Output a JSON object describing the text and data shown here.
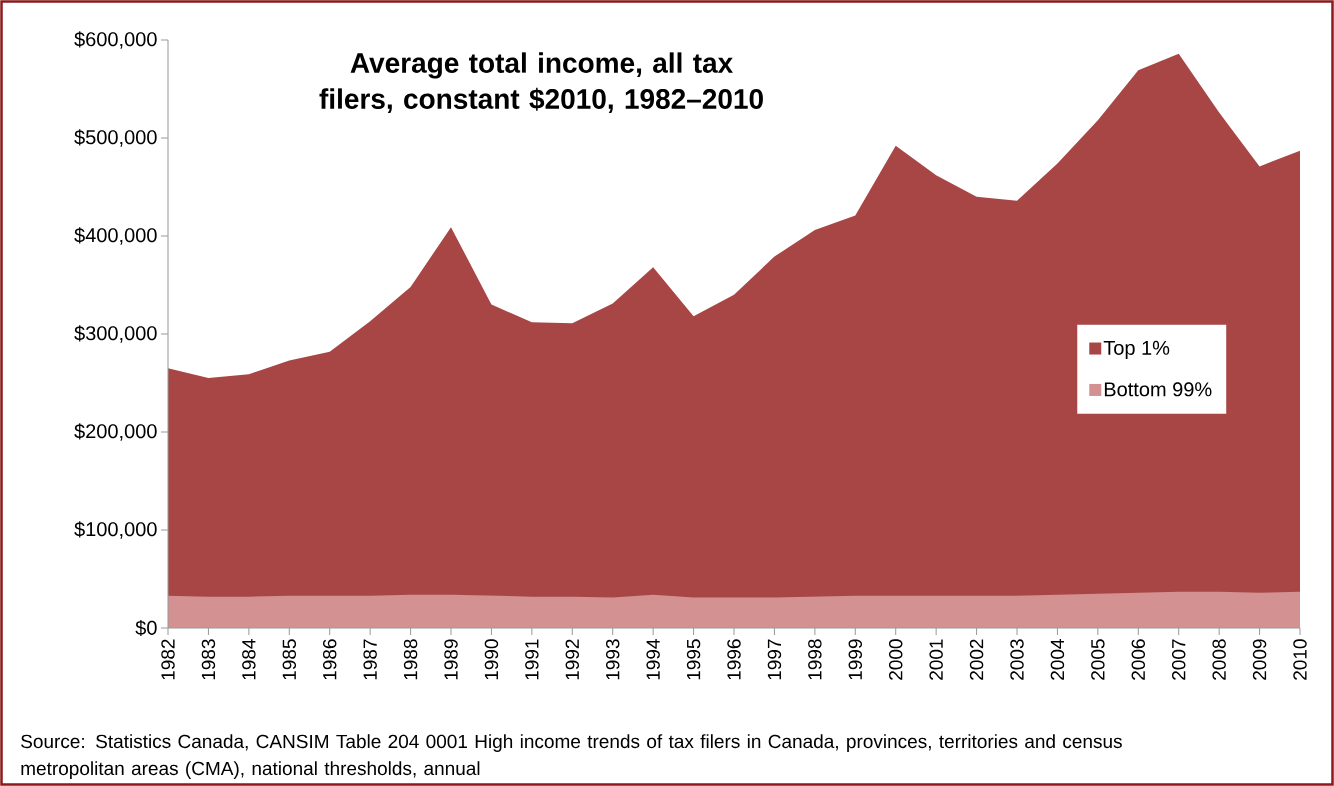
{
  "chart_data": {
    "type": "area",
    "title": "Average total income, all tax filers, constant $2010, 1982–2010",
    "categories": [
      "1982",
      "1983",
      "1984",
      "1985",
      "1986",
      "1987",
      "1988",
      "1989",
      "1990",
      "1991",
      "1992",
      "1993",
      "1994",
      "1995",
      "1996",
      "1997",
      "1998",
      "1999",
      "2000",
      "2001",
      "2002",
      "2003",
      "2004",
      "2005",
      "2006",
      "2007",
      "2008",
      "2009",
      "2010"
    ],
    "series": [
      {
        "name": "Top 1%",
        "color": "#a84646",
        "values": [
          265000,
          255000,
          259000,
          273000,
          282000,
          313000,
          348000,
          409000,
          330000,
          312000,
          311000,
          331000,
          368000,
          318000,
          340000,
          379000,
          406000,
          421000,
          492000,
          462000,
          440000,
          436000,
          474000,
          518000,
          569000,
          586000,
          526000,
          471000,
          487000
        ]
      },
      {
        "name": "Bottom 99%",
        "color": "#d39191",
        "values": [
          33000,
          32000,
          32000,
          33000,
          33000,
          33000,
          34000,
          34000,
          33000,
          32000,
          32000,
          31000,
          34000,
          31000,
          31000,
          31000,
          32000,
          33000,
          33000,
          33000,
          33000,
          33000,
          34000,
          35000,
          36000,
          37000,
          37000,
          36000,
          37000
        ]
      }
    ],
    "ylim": [
      0,
      600000
    ],
    "yticks": [
      {
        "value": 0,
        "label": "$0"
      },
      {
        "value": 100000,
        "label": "$100,000"
      },
      {
        "value": 200000,
        "label": "$200,000"
      },
      {
        "value": 300000,
        "label": "$300,000"
      },
      {
        "value": 400000,
        "label": "$400,000"
      },
      {
        "value": 500000,
        "label": "$500,000"
      },
      {
        "value": 600000,
        "label": "$600,000"
      }
    ],
    "grid": false,
    "legend": "right",
    "annotations": [
      "Source: Statistics Canada, CANSIM Table 204 0001 High income trends of tax filers in Canada, provinces, territories and census metropolitan areas (CMA), national thresholds, annual"
    ]
  }
}
